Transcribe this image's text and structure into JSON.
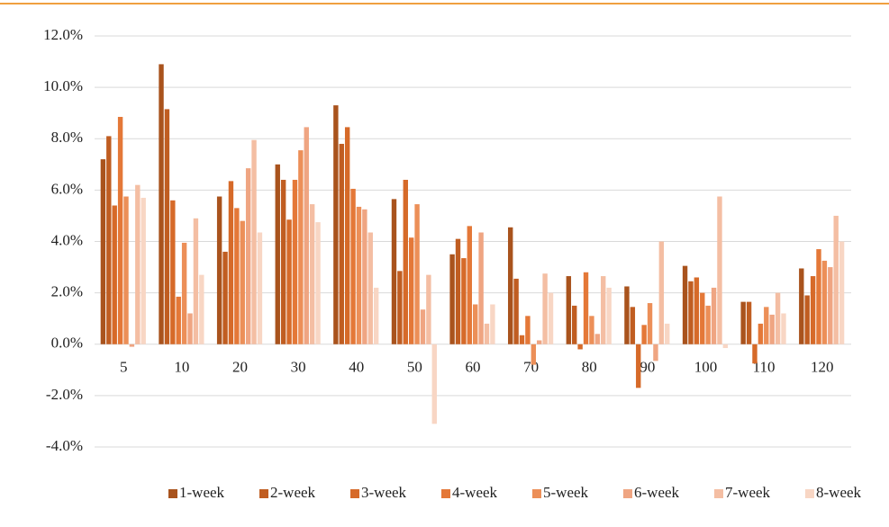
{
  "chart_data": {
    "type": "bar",
    "categories": [
      "5",
      "10",
      "20",
      "30",
      "40",
      "50",
      "60",
      "70",
      "80",
      "90",
      "100",
      "110",
      "120"
    ],
    "series": [
      {
        "name": "1-week",
        "color": "#a9531d",
        "values": [
          7.2,
          10.9,
          5.75,
          7.0,
          9.3,
          5.65,
          3.5,
          4.55,
          2.65,
          2.25,
          3.05,
          1.65,
          2.95
        ]
      },
      {
        "name": "2-week",
        "color": "#c05d21",
        "values": [
          8.1,
          9.15,
          3.6,
          6.4,
          7.8,
          2.85,
          4.1,
          2.55,
          1.5,
          1.45,
          2.45,
          1.65,
          1.9
        ]
      },
      {
        "name": "3-week",
        "color": "#d66a29",
        "values": [
          5.4,
          5.6,
          6.35,
          4.85,
          8.45,
          6.4,
          3.35,
          0.35,
          -0.2,
          -1.7,
          2.6,
          -0.75,
          2.65
        ]
      },
      {
        "name": "4-week",
        "color": "#e47838",
        "values": [
          8.85,
          1.85,
          5.3,
          6.4,
          6.05,
          4.15,
          4.6,
          1.1,
          2.8,
          0.75,
          2.0,
          0.8,
          3.7
        ]
      },
      {
        "name": "5-week",
        "color": "#ec8f58",
        "values": [
          5.75,
          3.95,
          4.8,
          7.55,
          5.35,
          5.45,
          1.55,
          -0.8,
          1.1,
          1.6,
          1.5,
          1.45,
          3.25
        ]
      },
      {
        "name": "6-week",
        "color": "#efa582",
        "values": [
          -0.1,
          1.2,
          6.85,
          8.45,
          5.25,
          1.35,
          4.35,
          0.15,
          0.4,
          -0.65,
          2.2,
          1.15,
          3.0
        ]
      },
      {
        "name": "7-week",
        "color": "#f4bea3",
        "values": [
          6.2,
          4.9,
          7.95,
          5.45,
          4.35,
          2.7,
          0.8,
          2.75,
          2.65,
          4.0,
          5.75,
          2.0,
          5.0
        ]
      },
      {
        "name": "8-week",
        "color": "#f8d6c4",
        "values": [
          5.7,
          2.7,
          4.35,
          4.75,
          2.2,
          -3.1,
          1.55,
          2.0,
          2.2,
          0.8,
          -0.15,
          1.2,
          4.0
        ]
      }
    ],
    "ylim": [
      -4,
      12
    ],
    "yticks": [
      {
        "value": -4,
        "label": "-4.0%"
      },
      {
        "value": -2,
        "label": "-2.0%"
      },
      {
        "value": 0,
        "label": "0.0%"
      },
      {
        "value": 2,
        "label": "2.0%"
      },
      {
        "value": 4,
        "label": "4.0%"
      },
      {
        "value": 6,
        "label": "6.0%"
      },
      {
        "value": 8,
        "label": "8.0%"
      },
      {
        "value": 10,
        "label": "10.0%"
      },
      {
        "value": 12,
        "label": "12.0%"
      }
    ],
    "grid": true,
    "legend": "bottom"
  }
}
